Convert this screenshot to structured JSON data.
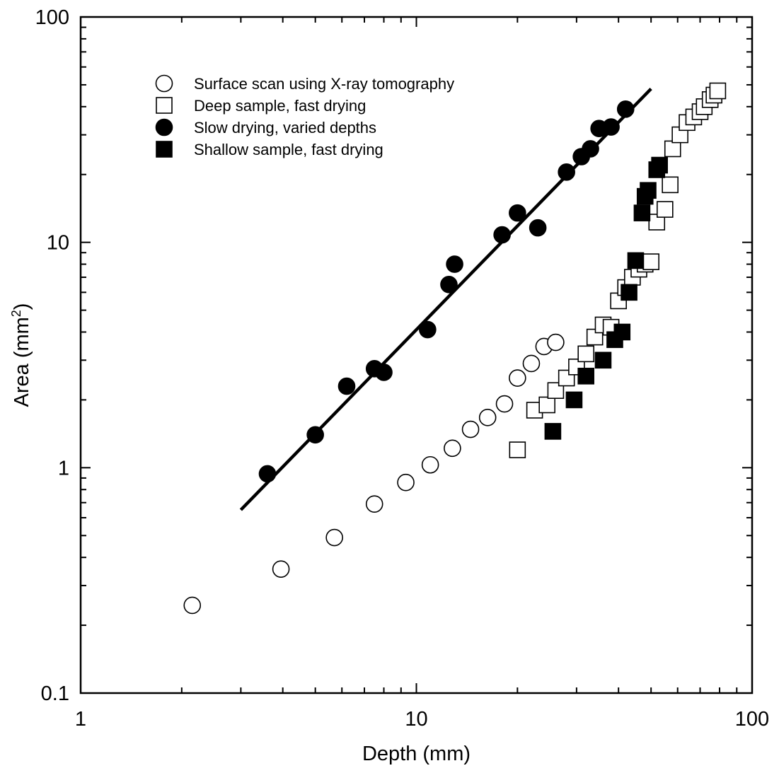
{
  "chart_data": {
    "type": "scatter",
    "xlabel": "Depth (mm)",
    "ylabel": "Area (mm²)",
    "ylabel_parts": {
      "main": "Area (mm",
      "sup": "2",
      "close": ")"
    },
    "xscale": "log",
    "yscale": "log",
    "xlim": [
      1,
      100
    ],
    "ylim": [
      0.1,
      100
    ],
    "xticks": [
      {
        "value": 1,
        "label": "1"
      },
      {
        "value": 10,
        "label": "10"
      },
      {
        "value": 100,
        "label": "100"
      }
    ],
    "yticks": [
      {
        "value": 0.1,
        "label": "0.1"
      },
      {
        "value": 1,
        "label": "1"
      },
      {
        "value": 10,
        "label": "10"
      },
      {
        "value": 100,
        "label": "100"
      }
    ],
    "grid": false,
    "legend_position": "top-left",
    "series": [
      {
        "name": "Surface scan using X-ray tomography",
        "marker": "circle",
        "filled": false,
        "points": [
          [
            2.15,
            0.245
          ],
          [
            3.95,
            0.355
          ],
          [
            5.7,
            0.49
          ],
          [
            7.5,
            0.69
          ],
          [
            9.3,
            0.86
          ],
          [
            11.0,
            1.03
          ],
          [
            12.8,
            1.22
          ],
          [
            14.5,
            1.48
          ],
          [
            16.3,
            1.67
          ],
          [
            18.3,
            1.92
          ],
          [
            20.0,
            2.5
          ],
          [
            22.0,
            2.9
          ],
          [
            24.0,
            3.45
          ],
          [
            26.0,
            3.6
          ]
        ]
      },
      {
        "name": "Deep sample, fast drying",
        "marker": "square",
        "filled": false,
        "points": [
          [
            20.0,
            1.2
          ],
          [
            22.5,
            1.8
          ],
          [
            24.5,
            1.9
          ],
          [
            26.0,
            2.2
          ],
          [
            28.0,
            2.5
          ],
          [
            30.0,
            2.8
          ],
          [
            32.0,
            3.2
          ],
          [
            34.0,
            3.8
          ],
          [
            36.0,
            4.3
          ],
          [
            38.0,
            4.2
          ],
          [
            40.0,
            5.5
          ],
          [
            42.0,
            6.3
          ],
          [
            44.0,
            7.0
          ],
          [
            46.0,
            7.6
          ],
          [
            48.0,
            8.0
          ],
          [
            50.0,
            8.2
          ],
          [
            52.0,
            12.3
          ],
          [
            55.0,
            14.0
          ],
          [
            57.0,
            18.0
          ],
          [
            58.0,
            26.0
          ],
          [
            61.0,
            30.0
          ],
          [
            64.0,
            34.0
          ],
          [
            67.0,
            36.0
          ],
          [
            70.0,
            38.0
          ],
          [
            72.0,
            40.0
          ],
          [
            75.0,
            43.0
          ],
          [
            77.0,
            45.0
          ],
          [
            79.0,
            47.0
          ]
        ]
      },
      {
        "name": "Slow drying, varied depths",
        "marker": "circle",
        "filled": true,
        "points": [
          [
            3.6,
            0.94
          ],
          [
            5.0,
            1.4
          ],
          [
            6.2,
            2.3
          ],
          [
            7.5,
            2.75
          ],
          [
            8.0,
            2.65
          ],
          [
            10.8,
            4.1
          ],
          [
            12.5,
            6.5
          ],
          [
            13.0,
            8.0
          ],
          [
            18.0,
            10.8
          ],
          [
            20.0,
            13.5
          ],
          [
            23.0,
            11.6
          ],
          [
            28.0,
            20.5
          ],
          [
            31.0,
            24.0
          ],
          [
            33.0,
            26.0
          ],
          [
            35.0,
            32.0
          ],
          [
            38.0,
            32.5
          ],
          [
            42.0,
            39.0
          ]
        ]
      },
      {
        "name": "Shallow sample, fast drying",
        "marker": "square",
        "filled": true,
        "points": [
          [
            25.5,
            1.45
          ],
          [
            29.5,
            2.0
          ],
          [
            32.0,
            2.55
          ],
          [
            36.0,
            3.0
          ],
          [
            39.0,
            3.7
          ],
          [
            41.0,
            4.0
          ],
          [
            43.0,
            6.0
          ],
          [
            45.0,
            8.3
          ],
          [
            47.0,
            13.5
          ],
          [
            48.0,
            16.0
          ],
          [
            49.0,
            17.0
          ],
          [
            52.0,
            21.0
          ],
          [
            53.0,
            22.0
          ]
        ]
      }
    ],
    "fit_line": {
      "from": [
        3.0,
        0.65
      ],
      "to": [
        50.0,
        48.0
      ]
    }
  }
}
